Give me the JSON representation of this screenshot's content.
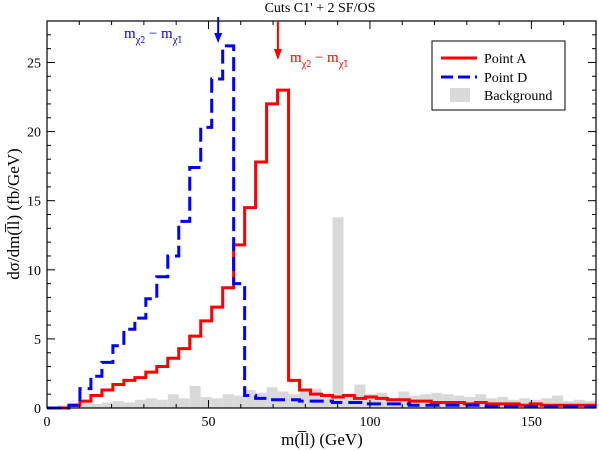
{
  "chart_data": {
    "type": "histogram",
    "title": "Cuts C1' + 2 SF/OS",
    "xlabel": "m(l̅l) (GeV)",
    "ylabel": "dσ/dm(l̅l) (fb/GeV)",
    "xlim": [
      0,
      170
    ],
    "ylim": [
      0,
      28
    ],
    "xticks": [
      0,
      50,
      100,
      150
    ],
    "yticks": [
      0,
      5,
      10,
      15,
      20,
      25
    ],
    "bin_width": 3.4,
    "legend_position": "top-right",
    "grid": false,
    "series": [
      {
        "name": "Point A",
        "style": "solid-step",
        "color": "#ff0000",
        "values": [
          0,
          0,
          0.2,
          0.5,
          0.9,
          1.3,
          1.7,
          2.0,
          2.2,
          2.6,
          3.0,
          3.6,
          4.3,
          5.2,
          6.3,
          7.3,
          8.7,
          11.8,
          14.5,
          17.8,
          22.0,
          23.0,
          2.0,
          1.3,
          1.0,
          0.9,
          0.8,
          0.9,
          0.7,
          0.8,
          0.7,
          0.6,
          0.6,
          0.5,
          0.5,
          0.4,
          0.4,
          0.4,
          0.3,
          0.4,
          0.3,
          0.3,
          0.3,
          0.2,
          0.3,
          0.2,
          0.2,
          0.2,
          0.2,
          0.2
        ]
      },
      {
        "name": "Point D",
        "style": "dashed-step",
        "color": "#0000ff",
        "values": [
          0,
          0,
          0.2,
          1.4,
          2.3,
          3.3,
          4.5,
          5.7,
          6.5,
          7.9,
          9.5,
          11.0,
          13.5,
          17.4,
          20.3,
          23.8,
          26.2,
          9.0,
          0.9,
          0.7,
          0.6,
          0.6,
          0.6,
          0.5,
          0.5,
          0.5,
          0.4,
          0.4,
          0.4,
          0.3,
          0.3,
          0.3,
          0.3,
          0.2,
          0.2,
          0.2,
          0.2,
          0.2,
          0.2,
          0.2,
          0.1,
          0.1,
          0.1,
          0.1,
          0.1,
          0.1,
          0.1,
          0.1,
          0.1,
          0.1
        ]
      },
      {
        "name": "Background",
        "style": "filled-bars",
        "color": "#d9d9d9",
        "values": [
          0.1,
          0.2,
          0.3,
          0.4,
          0.3,
          0.4,
          0.5,
          0.4,
          0.6,
          0.7,
          0.6,
          1.0,
          0.7,
          1.6,
          0.8,
          0.7,
          1.0,
          0.9,
          1.3,
          1.1,
          1.5,
          1.2,
          1.0,
          1.2,
          1.4,
          1.0,
          13.8,
          1.0,
          1.7,
          1.0,
          1.1,
          0.7,
          1.2,
          0.9,
          1.0,
          1.1,
          1.0,
          0.9,
          0.8,
          1.0,
          0.7,
          0.8,
          0.6,
          0.7,
          0.6,
          0.7,
          0.9,
          0.5,
          0.6,
          0.5
        ]
      }
    ],
    "annotations": [
      {
        "id": "arrow_D",
        "color": "#0000ff",
        "x": 53,
        "text": "m",
        "sub1": "χ̃",
        "sub1b": "2",
        "sub1c": "0",
        "minus": " − m",
        "sub2": "χ̃",
        "sub2b": "1",
        "sub2c": "0"
      },
      {
        "id": "arrow_A",
        "color": "#ff0000",
        "x": 71.5,
        "text": "m",
        "sub1": "χ̃",
        "sub1b": "2",
        "sub1c": "0",
        "minus": " − m",
        "sub2": "χ̃",
        "sub2b": "1",
        "sub2c": "0"
      }
    ]
  }
}
